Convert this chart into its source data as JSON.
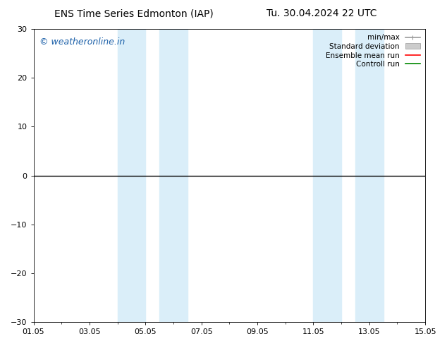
{
  "title_left": "ENS Time Series Edmonton (IAP)",
  "title_right": "Tu. 30.04.2024 22 UTC",
  "ylim": [
    -30,
    30
  ],
  "yticks": [
    -30,
    -20,
    -10,
    0,
    10,
    20,
    30
  ],
  "xtick_labels": [
    "01.05",
    "03.05",
    "05.05",
    "07.05",
    "09.05",
    "11.05",
    "13.05",
    "15.05"
  ],
  "xtick_positions": [
    0,
    2,
    4,
    6,
    8,
    10,
    12,
    14
  ],
  "x_min": 0,
  "x_max": 14,
  "shaded_regions": [
    [
      3.0,
      4.0
    ],
    [
      4.5,
      5.5
    ],
    [
      10.0,
      11.0
    ],
    [
      11.5,
      12.5
    ]
  ],
  "shaded_color": "#daeef9",
  "watermark": "© weatheronline.in",
  "watermark_color": "#1a5fa8",
  "legend_items": [
    {
      "label": "min/max",
      "color": "#999999",
      "lw": 1.2
    },
    {
      "label": "Standard deviation",
      "color": "#cccccc",
      "lw": 6
    },
    {
      "label": "Ensemble mean run",
      "color": "#ff0000",
      "lw": 1.2
    },
    {
      "label": "Controll run",
      "color": "#008800",
      "lw": 1.2
    }
  ],
  "zero_line_color": "#000000",
  "zero_line_lw": 1.0,
  "background_color": "#ffffff",
  "title_fontsize": 10,
  "tick_fontsize": 8,
  "watermark_fontsize": 9,
  "legend_fontsize": 7.5
}
